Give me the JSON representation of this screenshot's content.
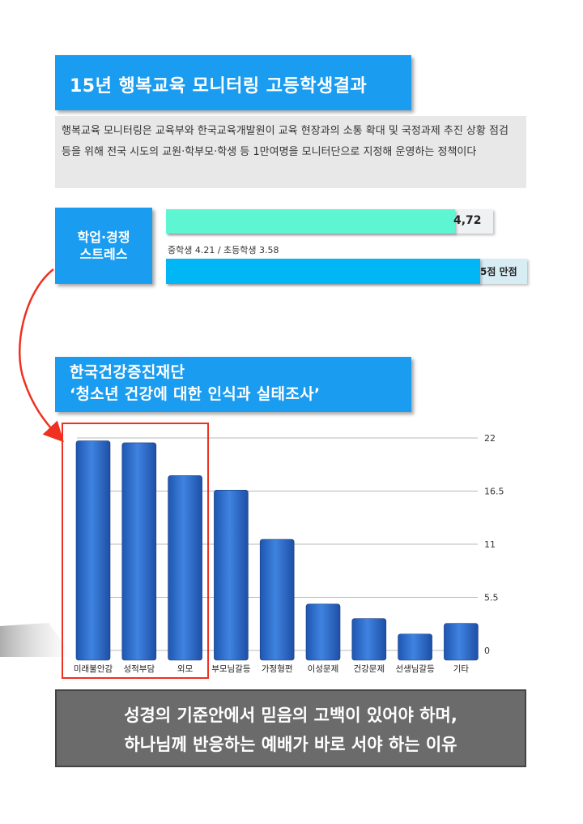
{
  "header": {
    "title": "15년 행복교육 모니터링 고등학생결과",
    "description": "행복교육 모니터링은 교육부와 한국교육개발원이 교육 현장과의 소통 확대 및 국정과제 추진 상황 점검 등을 위해 전국 시도의 교원·학부모·학생 등 1만여명을 모니터단으로 지정해 운영하는 정책이다"
  },
  "stress": {
    "label_line1": "학업·경쟁",
    "label_line2": "스트레스",
    "high_school_value": 4.72,
    "high_school_label": "4,72",
    "max_value": 5,
    "note": "중학생 4.21 / 초등학생 3.58",
    "max_label": "5점 만점",
    "colors": {
      "high_school": "#5ef5d2",
      "max": "#00b6f4",
      "box": "#1a9cf0"
    }
  },
  "survey": {
    "title_line1": "한국건강증진재단",
    "title_line2": "‘청소년 건강에 대한 인식과 실태조사’"
  },
  "chart_data": {
    "type": "bar",
    "categories": [
      "미래불안감",
      "성적부담",
      "외모",
      "부모님갈등",
      "가정형편",
      "이성문제",
      "건강문제",
      "선생님갈등",
      "기타"
    ],
    "values": [
      21.7,
      21.5,
      18.1,
      16.6,
      11.5,
      4.8,
      3.3,
      1.7,
      2.8
    ],
    "yticks": [
      0,
      5.5,
      11,
      16.5,
      22
    ],
    "ytick_labels": [
      "0",
      "5.5",
      "11",
      "16.5",
      "22"
    ],
    "ylim": [
      0,
      22
    ],
    "grid": true,
    "highlighted_categories": [
      "미래불안감",
      "성적부담",
      "외모"
    ],
    "bar_color": "#2f6fcf"
  },
  "footer": {
    "line1": "성경의 기준안에서 믿음의 고백이 있어야 하며,",
    "line2": "하나님께 반응하는 예배가 바로 서야 하는 이유"
  }
}
